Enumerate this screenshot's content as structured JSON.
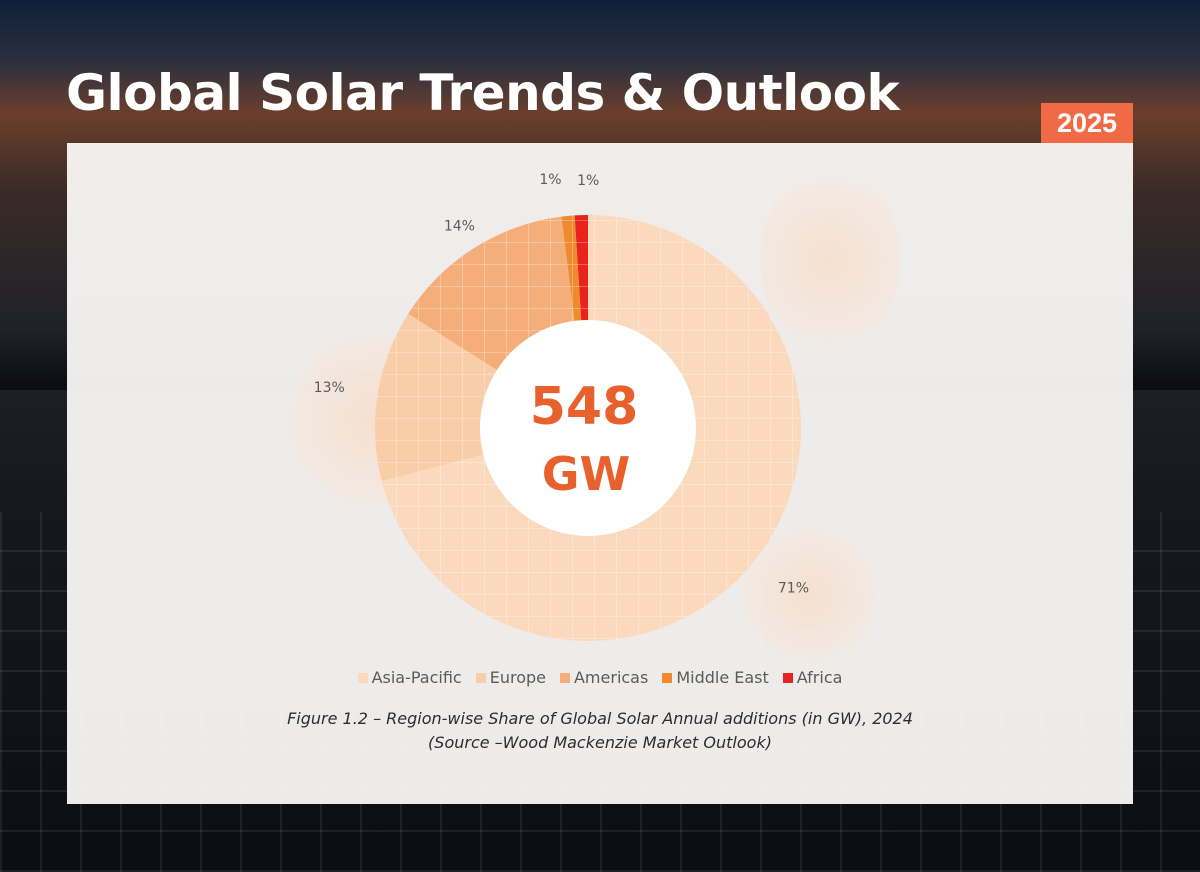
{
  "page": {
    "title": "Global Solar Trends & Outlook",
    "year_badge": "2025"
  },
  "chart_data": {
    "type": "pie",
    "style": "donut",
    "center_value": "548",
    "center_unit": "GW",
    "categories": [
      "Asia-Pacific",
      "Europe",
      "Americas",
      "Middle East",
      "Africa"
    ],
    "values": [
      71,
      13,
      14,
      1,
      1
    ],
    "labels": [
      "71%",
      "13%",
      "14%",
      "1%",
      "1%"
    ],
    "colors": [
      "#fbd9bd",
      "#f9cda8",
      "#f5ae7a",
      "#f08a2e",
      "#e8231d"
    ],
    "legend_position": "bottom",
    "title": "",
    "caption_line1": "Figure 1.2 – Region-wise Share of Global Solar Annual additions (in GW), 2024",
    "caption_line2": "(Source –Wood Mackenzie Market Outlook)"
  },
  "colors": {
    "accent": "#ef6a45",
    "center_text": "#e8602c"
  }
}
